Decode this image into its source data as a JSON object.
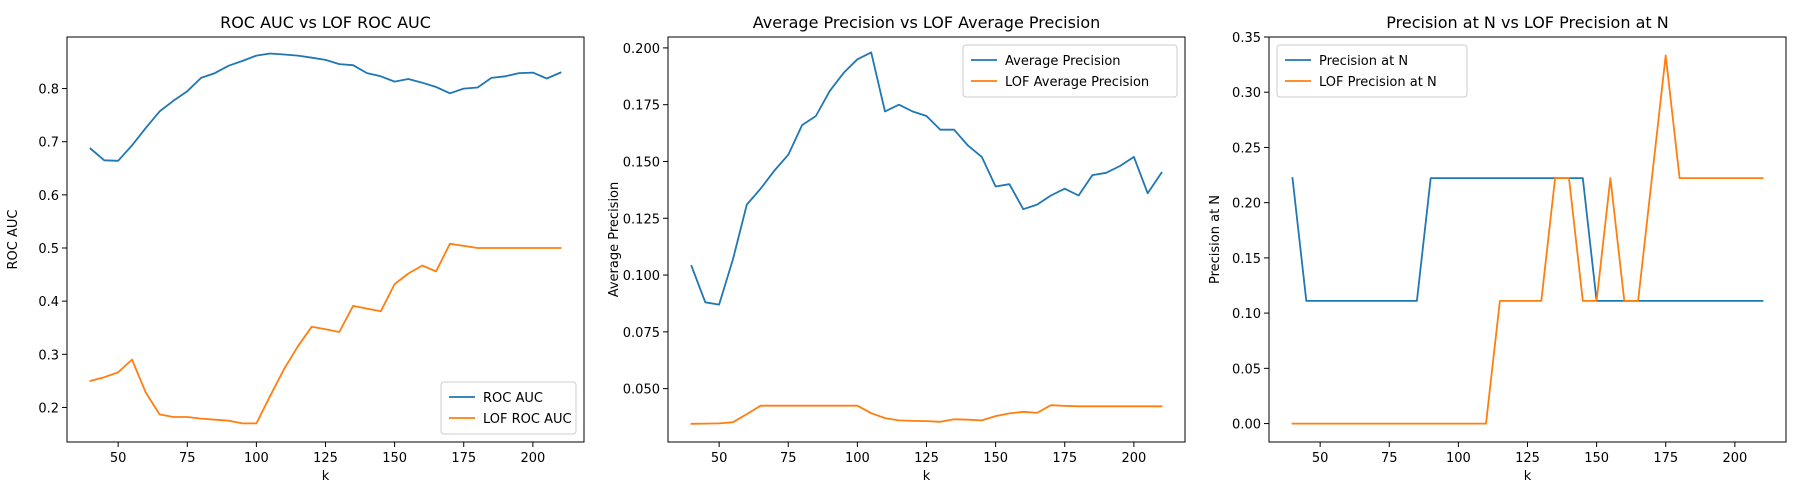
{
  "chart_data": [
    {
      "type": "line",
      "title": "ROC AUC vs LOF ROC AUC",
      "xlabel": "k",
      "ylabel": "ROC AUC",
      "xlim": [
        31.5,
        218.5
      ],
      "ylim": [
        0.135,
        0.897
      ],
      "xticks": [
        50,
        75,
        100,
        125,
        150,
        175,
        200
      ],
      "yticks": [
        0.2,
        0.3,
        0.4,
        0.5,
        0.6,
        0.7,
        0.8
      ],
      "ytick_labels": [
        "0.2",
        "0.3",
        "0.4",
        "0.5",
        "0.6",
        "0.7",
        "0.8"
      ],
      "legend_loc": "lower-right",
      "x": [
        40,
        45,
        50,
        55,
        60,
        65,
        70,
        75,
        80,
        85,
        90,
        95,
        100,
        105,
        110,
        115,
        120,
        125,
        130,
        135,
        140,
        145,
        150,
        155,
        160,
        165,
        170,
        175,
        180,
        185,
        190,
        195,
        200,
        205,
        210
      ],
      "series": [
        {
          "name": "ROC AUC",
          "color": "#1f77b4",
          "values": [
            0.687,
            0.665,
            0.664,
            0.693,
            0.726,
            0.757,
            0.777,
            0.795,
            0.82,
            0.829,
            0.843,
            0.852,
            0.862,
            0.866,
            0.864,
            0.862,
            0.858,
            0.854,
            0.846,
            0.844,
            0.829,
            0.823,
            0.813,
            0.818,
            0.811,
            0.803,
            0.791,
            0.8,
            0.802,
            0.82,
            0.823,
            0.829,
            0.83,
            0.819,
            0.83
          ]
        },
        {
          "name": "LOF ROC AUC",
          "color": "#ff7f0e",
          "values": [
            0.25,
            0.257,
            0.266,
            0.29,
            0.228,
            0.187,
            0.182,
            0.182,
            0.179,
            0.177,
            0.175,
            0.17,
            0.17,
            0.222,
            0.272,
            0.315,
            0.352,
            0.347,
            0.342,
            0.391,
            0.386,
            0.381,
            0.432,
            0.452,
            0.467,
            0.456,
            0.508,
            0.504,
            0.5,
            0.5,
            0.5,
            0.5,
            0.5,
            0.5,
            0.5
          ]
        }
      ]
    },
    {
      "type": "line",
      "title": "Average Precision vs LOF Average Precision",
      "xlabel": "k",
      "ylabel": "Average Precision",
      "xlim": [
        31.5,
        218.5
      ],
      "ylim": [
        0.0265,
        0.2048
      ],
      "xticks": [
        50,
        75,
        100,
        125,
        150,
        175,
        200
      ],
      "yticks": [
        0.05,
        0.075,
        0.1,
        0.125,
        0.15,
        0.175,
        0.2
      ],
      "ytick_labels": [
        "0.050",
        "0.075",
        "0.100",
        "0.125",
        "0.150",
        "0.175",
        "0.200"
      ],
      "legend_loc": "upper-right",
      "x": [
        40,
        45,
        50,
        55,
        60,
        65,
        70,
        75,
        80,
        85,
        90,
        95,
        100,
        105,
        110,
        115,
        120,
        125,
        130,
        135,
        140,
        145,
        150,
        155,
        160,
        165,
        170,
        175,
        180,
        185,
        190,
        195,
        200,
        205,
        210
      ],
      "series": [
        {
          "name": "Average Precision",
          "color": "#1f77b4",
          "values": [
            0.104,
            0.088,
            0.087,
            0.107,
            0.131,
            0.138,
            0.146,
            0.153,
            0.166,
            0.17,
            0.181,
            0.189,
            0.195,
            0.198,
            0.172,
            0.175,
            0.172,
            0.17,
            0.164,
            0.164,
            0.157,
            0.152,
            0.139,
            0.14,
            0.129,
            0.131,
            0.135,
            0.138,
            0.135,
            0.144,
            0.145,
            0.148,
            0.152,
            0.136,
            0.145
          ]
        },
        {
          "name": "LOF Average Precision",
          "color": "#ff7f0e",
          "values": [
            0.0345,
            0.0346,
            0.0347,
            0.0352,
            0.0388,
            0.0425,
            0.0425,
            0.0425,
            0.0425,
            0.0425,
            0.0425,
            0.0425,
            0.0425,
            0.0392,
            0.037,
            0.036,
            0.0358,
            0.0357,
            0.0354,
            0.0365,
            0.0363,
            0.036,
            0.0379,
            0.0391,
            0.0398,
            0.0393,
            0.0427,
            0.0424,
            0.0422,
            0.0422,
            0.0422,
            0.0422,
            0.0422,
            0.0422,
            0.0422
          ]
        }
      ]
    },
    {
      "type": "line",
      "title": "Precision at N vs LOF Precision at N",
      "xlabel": "k",
      "ylabel": "Precision at N",
      "xlim": [
        31.5,
        218.5
      ],
      "ylim": [
        -0.0167,
        0.35
      ],
      "xticks": [
        50,
        75,
        100,
        125,
        150,
        175,
        200
      ],
      "yticks": [
        0.0,
        0.05,
        0.1,
        0.15,
        0.2,
        0.25,
        0.3,
        0.35
      ],
      "ytick_labels": [
        "0.00",
        "0.05",
        "0.10",
        "0.15",
        "0.20",
        "0.25",
        "0.30",
        "0.35"
      ],
      "legend_loc": "upper-left",
      "x": [
        40,
        45,
        50,
        55,
        60,
        65,
        70,
        75,
        80,
        85,
        90,
        95,
        100,
        105,
        110,
        115,
        120,
        125,
        130,
        135,
        140,
        145,
        150,
        155,
        160,
        165,
        170,
        175,
        180,
        185,
        190,
        195,
        200,
        205,
        210
      ],
      "series": [
        {
          "name": "Precision at N",
          "color": "#1f77b4",
          "values": [
            0.2222,
            0.1111,
            0.1111,
            0.1111,
            0.1111,
            0.1111,
            0.1111,
            0.1111,
            0.1111,
            0.1111,
            0.2222,
            0.2222,
            0.2222,
            0.2222,
            0.2222,
            0.2222,
            0.2222,
            0.2222,
            0.2222,
            0.2222,
            0.2222,
            0.2222,
            0.1111,
            0.1111,
            0.1111,
            0.1111,
            0.1111,
            0.1111,
            0.1111,
            0.1111,
            0.1111,
            0.1111,
            0.1111,
            0.1111,
            0.1111
          ]
        },
        {
          "name": "LOF Precision at N",
          "color": "#ff7f0e",
          "values": [
            0,
            0,
            0,
            0,
            0,
            0,
            0,
            0,
            0,
            0,
            0,
            0,
            0,
            0,
            0,
            0.1111,
            0.1111,
            0.1111,
            0.1111,
            0.2222,
            0.2222,
            0.1111,
            0.1111,
            0.2222,
            0.1111,
            0.1111,
            0.2222,
            0.3333,
            0.2222,
            0.2222,
            0.2222,
            0.2222,
            0.2222,
            0.2222,
            0.2222
          ]
        }
      ]
    }
  ]
}
